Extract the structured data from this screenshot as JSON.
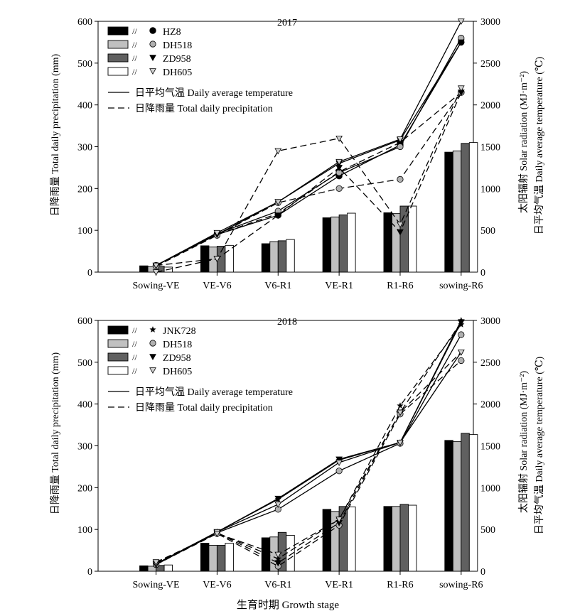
{
  "x_axis_label": "生育时期  Growth stage",
  "left_axis_label": "日降雨量 Total daily precipitation (mm)",
  "right_axis_label_1": "太阳辐射  Solar radiation (MJ·m⁻²)",
  "right_axis_label_2": "日平均气温  Daily average temperature (℃)",
  "line_legend": {
    "solid": "日平均气温 Daily average temperature",
    "dashed": "日降雨量 Total daily precipitation"
  },
  "legend_slash": "//",
  "chart_data": [
    {
      "type": "bar",
      "title": "2017",
      "categories": [
        "Sowing-VE",
        "VE-V6",
        "V6-R1",
        "VE-R1",
        "R1-R6",
        "sowing-R6"
      ],
      "left_axis": {
        "min": 0,
        "max": 600,
        "ticks": [
          0,
          100,
          200,
          300,
          400,
          500,
          600
        ]
      },
      "right_axis": {
        "min": 0,
        "max": 3000,
        "ticks": [
          0,
          500,
          1000,
          1500,
          2000,
          2500,
          3000
        ]
      },
      "series": [
        {
          "name": "HZ8",
          "fill": "#000000",
          "marker": "circle-black",
          "bars": [
            15,
            63,
            68,
            130,
            142,
            287
          ],
          "temperature": [
            80,
            450,
            680,
            1150,
            1520,
            2750
          ],
          "precipitation": [
            80,
            450,
            700,
            1200,
            1550,
            2150
          ]
        },
        {
          "name": "DH518",
          "fill": "#c0c0c0",
          "marker": "circle-gray",
          "bars": [
            13,
            60,
            73,
            132,
            140,
            290
          ],
          "temperature": [
            80,
            460,
            730,
            1190,
            1500,
            2800
          ],
          "precipitation": [
            70,
            440,
            830,
            1000,
            1110,
            2150
          ]
        },
        {
          "name": "ZD958",
          "fill": "#606060",
          "marker": "tri-down-black",
          "bars": [
            14,
            62,
            75,
            137,
            158,
            308
          ],
          "temperature": [
            80,
            450,
            840,
            1300,
            1580,
            2750
          ],
          "precipitation": [
            80,
            160,
            680,
            1250,
            480,
            2150
          ]
        },
        {
          "name": "DH605",
          "fill": "#ffffff",
          "marker": "tri-down-white",
          "bars": [
            12,
            64,
            78,
            141,
            158,
            310
          ],
          "temperature": [
            80,
            470,
            840,
            1320,
            1590,
            3000
          ],
          "precipitation": [
            0,
            160,
            1450,
            1600,
            570,
            2200
          ]
        }
      ]
    },
    {
      "type": "bar",
      "title": "2018",
      "categories": [
        "Sowing-VE",
        "VE-V6",
        "V6-R1",
        "VE-R1",
        "R1-R6",
        "sowing-R6"
      ],
      "left_axis": {
        "min": 0,
        "max": 600,
        "ticks": [
          0,
          100,
          200,
          300,
          400,
          500,
          600
        ]
      },
      "right_axis": {
        "min": 0,
        "max": 3000,
        "ticks": [
          0,
          500,
          1000,
          1500,
          2000,
          2500,
          3000
        ]
      },
      "series": [
        {
          "name": "JNK728",
          "fill": "#000000",
          "marker": "star-black",
          "bars": [
            13,
            67,
            80,
            148,
            155,
            313
          ],
          "temperature": [
            80,
            470,
            860,
            1330,
            1540,
            3000
          ],
          "precipitation": [
            100,
            460,
            150,
            620,
            1980,
            2950
          ]
        },
        {
          "name": "DH518",
          "fill": "#c0c0c0",
          "marker": "circle-gray",
          "bars": [
            12,
            62,
            82,
            143,
            155,
            310
          ],
          "temperature": [
            80,
            460,
            740,
            1200,
            1530,
            2830
          ],
          "precipitation": [
            80,
            450,
            60,
            550,
            1880,
            2520
          ]
        },
        {
          "name": "ZD958",
          "fill": "#606060",
          "marker": "tri-down-black",
          "bars": [
            14,
            62,
            93,
            155,
            160,
            330
          ],
          "temperature": [
            80,
            470,
            870,
            1340,
            1540,
            2980
          ],
          "precipitation": [
            90,
            460,
            100,
            580,
            1900,
            2980
          ]
        },
        {
          "name": "DH605",
          "fill": "#ffffff",
          "marker": "tri-down-white",
          "bars": [
            15,
            67,
            86,
            154,
            158,
            327
          ],
          "temperature": [
            90,
            470,
            800,
            1300,
            1540,
            2620
          ],
          "precipitation": [
            110,
            450,
            200,
            620,
            1900,
            2620
          ]
        }
      ]
    }
  ]
}
